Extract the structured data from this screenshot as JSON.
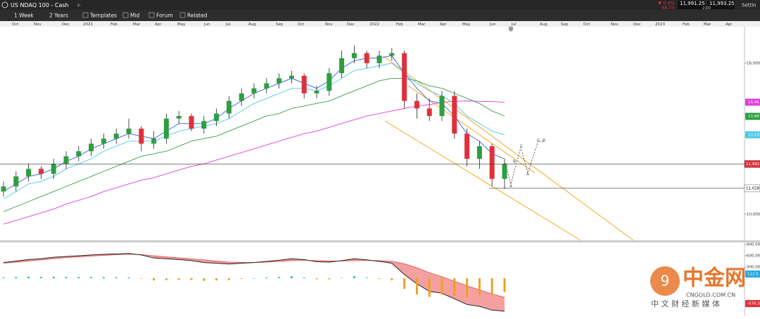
{
  "header": {
    "symbol": "US NDAQ 100 - Cash",
    "change_pct": "▼ 0.4%",
    "change": "48.75",
    "bid": "11,991.25",
    "ask": "11,993.25",
    "spread": "2.00",
    "settings": "Settin"
  },
  "toolbar": [
    "1 Week",
    "2 Years",
    "Templates",
    "Mid",
    "Forum",
    "Related"
  ],
  "timeline": [
    "Oct",
    "Nov",
    "Dec",
    "2021",
    "Feb",
    "Mar",
    "Apr",
    "May",
    "Jun",
    "Jul",
    "Aug",
    "Sep",
    "Oct",
    "Nov",
    "Dec",
    "2022",
    "Feb",
    "Mar",
    "Apr",
    "May",
    "Jun",
    "Jul",
    "Aug",
    "Sep",
    "Oct",
    "Nov",
    "Dec",
    "2023",
    "Feb",
    "Mar",
    "Apr"
  ],
  "price": {
    "ylim": [
      8960,
      17450
    ],
    "yticks": [
      {
        "value": 16000,
        "label": "16,000.00"
      },
      {
        "value": 10000,
        "label": "10,000.00"
      }
    ],
    "candles": {
      "open": [
        10900,
        11100,
        11500,
        11800,
        11600,
        12000,
        12300,
        12500,
        12800,
        13000,
        13200,
        13400,
        12800,
        13000,
        13800,
        13900,
        13400,
        13700,
        14000,
        14500,
        14800,
        15000,
        15200,
        15400,
        15500,
        14800,
        14900,
        15600,
        16200,
        16400,
        16000,
        16300,
        16400,
        14500,
        14200,
        13900,
        14700,
        13200,
        12200,
        12700,
        11400
      ],
      "high": [
        11300,
        11700,
        12000,
        11900,
        12200,
        12500,
        12700,
        13000,
        13200,
        13400,
        13800,
        13500,
        13300,
        14000,
        14100,
        14000,
        13900,
        14200,
        14700,
        15000,
        15200,
        15400,
        15600,
        15700,
        15600,
        15100,
        15800,
        16500,
        16700,
        16500,
        16500,
        16600,
        16500,
        14800,
        14600,
        14900,
        14900,
        13400,
        12900,
        12800,
        12200
      ],
      "low": [
        10700,
        10900,
        11300,
        11400,
        11400,
        11800,
        12100,
        12300,
        12600,
        12800,
        13000,
        12500,
        12600,
        12800,
        13600,
        13300,
        13200,
        13500,
        13800,
        14300,
        14600,
        14800,
        15000,
        15200,
        14600,
        14600,
        14700,
        15400,
        16000,
        15800,
        15800,
        16100,
        14200,
        13800,
        13700,
        13700,
        13000,
        11900,
        11800,
        11100,
        11000
      ],
      "close": [
        11100,
        11500,
        11800,
        11600,
        12000,
        12300,
        12500,
        12800,
        13000,
        13200,
        13400,
        12800,
        13000,
        13800,
        13900,
        13400,
        13700,
        14000,
        14500,
        14800,
        15000,
        15200,
        15400,
        15500,
        14800,
        14900,
        15600,
        16200,
        16400,
        16000,
        16300,
        16400,
        14500,
        14200,
        13900,
        14700,
        13200,
        12200,
        12700,
        11400,
        11990
      ],
      "up_color": "#2e9e3e",
      "down_color": "#e0303a"
    },
    "series": [
      {
        "color": "#e040d8",
        "values": [
          9600,
          9750,
          9900,
          10050,
          10200,
          10400,
          10550,
          10700,
          10900,
          11050,
          11200,
          11350,
          11450,
          11600,
          11750,
          11900,
          12000,
          12150,
          12300,
          12450,
          12600,
          12750,
          12900,
          13050,
          13200,
          13300,
          13450,
          13600,
          13750,
          13900,
          14000,
          14100,
          14200,
          14300,
          14350,
          14450,
          14480,
          14500,
          14480,
          14470,
          14450
        ]
      },
      {
        "color": "#3a9a4a",
        "values": [
          10100,
          10300,
          10500,
          10700,
          10900,
          11100,
          11300,
          11500,
          11700,
          11900,
          12100,
          12300,
          12400,
          12500,
          12700,
          12900,
          13000,
          13100,
          13300,
          13500,
          13700,
          13900,
          14000,
          14200,
          14300,
          14400,
          14500,
          14700,
          14900,
          15100,
          15300,
          15400,
          15400,
          15300,
          15100,
          15000,
          14800,
          14600,
          14400,
          14100,
          13900
        ]
      },
      {
        "color": "#4cc8e8",
        "values": [
          10600,
          10900,
          11200,
          11300,
          11500,
          11800,
          12000,
          12200,
          12500,
          12700,
          12900,
          12900,
          12900,
          13100,
          13300,
          13400,
          13500,
          13600,
          13800,
          14100,
          14400,
          14600,
          14800,
          15000,
          15000,
          14900,
          15100,
          15400,
          15700,
          15800,
          15900,
          16000,
          15600,
          15200,
          14900,
          14700,
          14400,
          13900,
          13600,
          13300,
          13155
        ]
      },
      {
        "color": "#3060e0",
        "values": [
          10900,
          11200,
          11500,
          11600,
          11800,
          12100,
          12300,
          12600,
          12800,
          13000,
          13200,
          13100,
          13000,
          13300,
          13600,
          13600,
          13600,
          13800,
          14200,
          14500,
          14800,
          15000,
          15200,
          15400,
          15200,
          15000,
          15300,
          15800,
          16100,
          16200,
          16200,
          16300,
          15600,
          15000,
          14500,
          14400,
          13900,
          13200,
          12900,
          12400,
          12200
        ]
      }
    ],
    "levels": [
      {
        "value": 11992.25,
        "label": "11,992.2",
        "color": "#e0303a"
      },
      {
        "value": 11028.3,
        "label": "11,028.3",
        "color": "#ffffff"
      }
    ],
    "tags": [
      {
        "value": 14450,
        "label": "14,45",
        "color": "#e040d8"
      },
      {
        "value": 13887,
        "label": "13,887",
        "color": "#2e9e3e"
      },
      {
        "value": 13155,
        "label": "13,155",
        "color": "#4cc8e8"
      }
    ],
    "pattern_labels": [
      "B",
      "C",
      "A",
      "C",
      "B",
      "A"
    ]
  },
  "indicator": {
    "ylim": [
      -1013,
      956
    ],
    "yticks": [
      {
        "value": 900,
        "label": "900.000"
      },
      {
        "value": 600,
        "label": "600.000"
      },
      {
        "value": 300,
        "label": "300.000"
      }
    ],
    "macd": [
      420,
      460,
      500,
      520,
      560,
      580,
      600,
      620,
      640,
      650,
      660,
      620,
      540,
      520,
      500,
      470,
      420,
      400,
      380,
      400,
      420,
      450,
      480,
      520,
      500,
      440,
      430,
      470,
      520,
      490,
      450,
      400,
      100,
      -150,
      -350,
      -400,
      -550,
      -700,
      -750,
      -850,
      -880
    ],
    "signal": [
      400,
      430,
      460,
      490,
      520,
      550,
      570,
      590,
      610,
      625,
      640,
      630,
      600,
      570,
      545,
      520,
      490,
      460,
      430,
      420,
      420,
      430,
      450,
      470,
      480,
      470,
      460,
      460,
      470,
      475,
      470,
      455,
      385,
      280,
      150,
      40,
      -80,
      -200,
      -310,
      -420,
      -510
    ],
    "histogram": [
      20,
      30,
      40,
      30,
      40,
      30,
      30,
      30,
      30,
      25,
      20,
      -10,
      -60,
      -50,
      -45,
      -50,
      -70,
      -60,
      -50,
      -20,
      0,
      20,
      30,
      50,
      20,
      -30,
      -30,
      10,
      50,
      15,
      -20,
      -55,
      -285,
      -430,
      -500,
      -440,
      -470,
      -500,
      -440,
      -430,
      -370
    ],
    "pos_color": "#29a8e0",
    "neg_color": "#f0a020",
    "tags": [
      {
        "value": 112.5,
        "label": "112.5",
        "color": "#29a8e0"
      },
      {
        "value": -676.3,
        "label": "-676.3",
        "color": "#e0303a"
      }
    ]
  },
  "watermark": {
    "brand": "中金网",
    "site": "CNGOLD.COM.CN",
    "slogan": "中 文 财 经 新 媒 体"
  }
}
